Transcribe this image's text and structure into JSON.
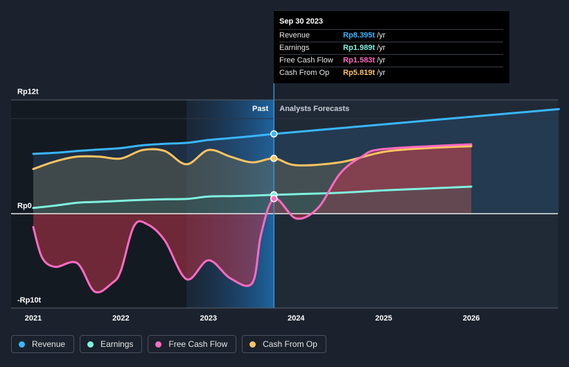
{
  "chart_data": {
    "type": "area",
    "x_ticks": [
      "2021",
      "2022",
      "2023",
      "2024",
      "2025",
      "2026"
    ],
    "y_ticks": [
      "Rp12t",
      "Rp0",
      "-Rp10t"
    ],
    "ylim": [
      -10,
      12
    ],
    "unit": "trillion IDR",
    "past_label": "Past",
    "forecast_label": "Analysts Forecasts",
    "divider_date": "2023-09-30",
    "grid": false,
    "series": [
      {
        "name": "Revenue",
        "color": "#3ab6ff",
        "points": [
          [
            2021.0,
            6.3
          ],
          [
            2021.25,
            6.4
          ],
          [
            2021.5,
            6.6
          ],
          [
            2021.75,
            6.75
          ],
          [
            2022.0,
            6.9
          ],
          [
            2022.25,
            7.2
          ],
          [
            2022.5,
            7.35
          ],
          [
            2022.75,
            7.45
          ],
          [
            2023.0,
            7.75
          ],
          [
            2023.25,
            7.95
          ],
          [
            2023.5,
            8.15
          ],
          [
            2023.75,
            8.395
          ],
          [
            2024.0,
            8.6
          ],
          [
            2024.5,
            9.0
          ],
          [
            2025.0,
            9.4
          ],
          [
            2025.5,
            9.8
          ],
          [
            2026.0,
            10.2
          ],
          [
            2026.5,
            10.6
          ],
          [
            2027.0,
            11.0
          ]
        ]
      },
      {
        "name": "Earnings",
        "color": "#7ff2e0",
        "points": [
          [
            2021.0,
            0.6
          ],
          [
            2021.25,
            0.85
          ],
          [
            2021.5,
            1.15
          ],
          [
            2021.75,
            1.25
          ],
          [
            2022.0,
            1.35
          ],
          [
            2022.25,
            1.45
          ],
          [
            2022.5,
            1.52
          ],
          [
            2022.75,
            1.55
          ],
          [
            2023.0,
            1.8
          ],
          [
            2023.25,
            1.85
          ],
          [
            2023.5,
            1.9
          ],
          [
            2023.75,
            1.989
          ],
          [
            2024.0,
            2.05
          ],
          [
            2024.5,
            2.2
          ],
          [
            2025.0,
            2.45
          ],
          [
            2025.5,
            2.65
          ],
          [
            2026.0,
            2.85
          ]
        ]
      },
      {
        "name": "Free Cash Flow",
        "color": "#ff6bc3",
        "points": [
          [
            2021.0,
            -1.4
          ],
          [
            2021.1,
            -4.6
          ],
          [
            2021.25,
            -5.6
          ],
          [
            2021.5,
            -5.2
          ],
          [
            2021.7,
            -8.2
          ],
          [
            2021.9,
            -7.3
          ],
          [
            2022.0,
            -6.0
          ],
          [
            2022.15,
            -1.3
          ],
          [
            2022.3,
            -1.1
          ],
          [
            2022.5,
            -2.8
          ],
          [
            2022.75,
            -6.9
          ],
          [
            2023.0,
            -4.9
          ],
          [
            2023.25,
            -6.8
          ],
          [
            2023.5,
            -7.3
          ],
          [
            2023.6,
            -2.2
          ],
          [
            2023.75,
            1.583
          ],
          [
            2024.0,
            -0.5
          ],
          [
            2024.25,
            0.6
          ],
          [
            2024.5,
            4.2
          ],
          [
            2024.75,
            6.0
          ],
          [
            2025.0,
            6.8
          ],
          [
            2026.0,
            7.3
          ]
        ]
      },
      {
        "name": "Cash From Op",
        "color": "#ffc361",
        "points": [
          [
            2021.0,
            4.7
          ],
          [
            2021.25,
            5.5
          ],
          [
            2021.5,
            6.0
          ],
          [
            2021.75,
            6.0
          ],
          [
            2022.0,
            5.8
          ],
          [
            2022.25,
            6.7
          ],
          [
            2022.5,
            6.6
          ],
          [
            2022.75,
            5.2
          ],
          [
            2023.0,
            6.7
          ],
          [
            2023.25,
            6.0
          ],
          [
            2023.5,
            5.4
          ],
          [
            2023.75,
            5.819
          ],
          [
            2024.0,
            5.1
          ],
          [
            2024.5,
            5.4
          ],
          [
            2025.0,
            6.5
          ],
          [
            2025.5,
            6.9
          ],
          [
            2026.0,
            7.1
          ]
        ]
      }
    ]
  },
  "tooltip": {
    "date": "Sep 30 2023",
    "rows": [
      {
        "label": "Revenue",
        "value": "Rp8.395t",
        "unit": "/yr",
        "color": "#3ab6ff"
      },
      {
        "label": "Earnings",
        "value": "Rp1.989t",
        "unit": "/yr",
        "color": "#7ff2e0"
      },
      {
        "label": "Free Cash Flow",
        "value": "Rp1.583t",
        "unit": "/yr",
        "color": "#ff6bc3"
      },
      {
        "label": "Cash From Op",
        "value": "Rp5.819t",
        "unit": "/yr",
        "color": "#ffc361"
      }
    ]
  },
  "legend": [
    {
      "label": "Revenue",
      "color": "#3ab6ff"
    },
    {
      "label": "Earnings",
      "color": "#7ff2e0"
    },
    {
      "label": "Free Cash Flow",
      "color": "#ff6bc3"
    },
    {
      "label": "Cash From Op",
      "color": "#ffc361"
    }
  ]
}
